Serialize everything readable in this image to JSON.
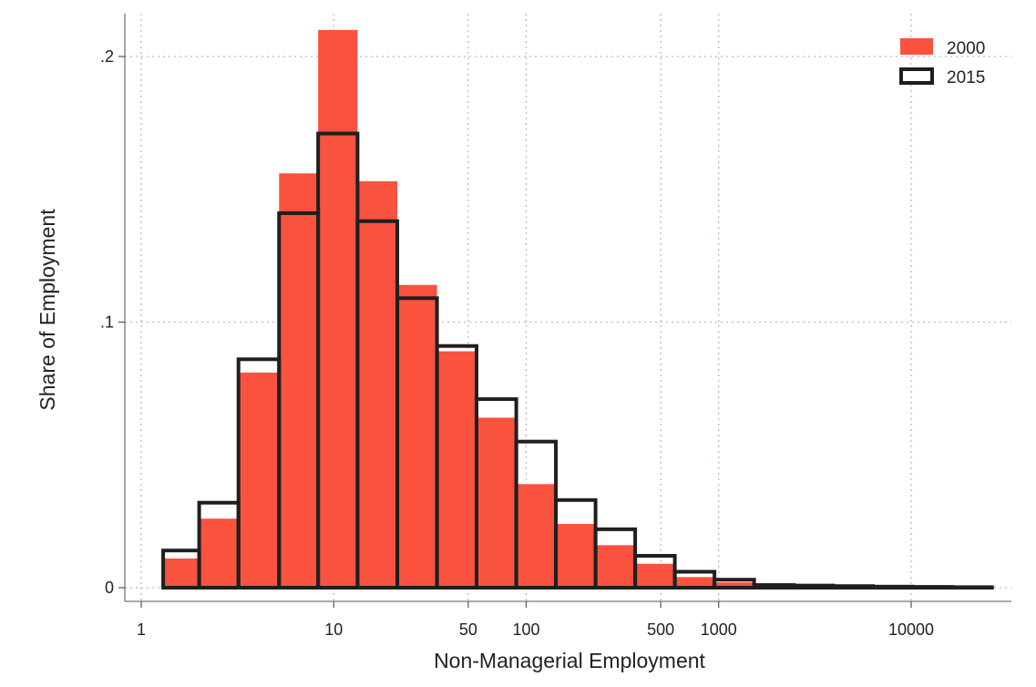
{
  "chart_data": {
    "type": "bar",
    "subtype": "histogram",
    "title": "",
    "xlabel": "Non-Managerial Employment",
    "ylabel": "Share of Employment",
    "x_scale": "log",
    "x_ticks": [
      "1",
      "10",
      "50",
      "100",
      "500",
      "1000",
      "10000"
    ],
    "y_ticks": [
      "0",
      ".1",
      ".2"
    ],
    "ylim": [
      0,
      0.2
    ],
    "grid": true,
    "legend_position": "top-right",
    "colors": {
      "2000": "#f9523f",
      "2015_outline": "#1f1f1f"
    },
    "bins": [
      [
        1.3,
        2.0
      ],
      [
        2.0,
        3.2
      ],
      [
        3.2,
        5.2
      ],
      [
        5.2,
        8.3
      ],
      [
        8.3,
        13.3
      ],
      [
        13.3,
        21.4
      ],
      [
        21.4,
        34.4
      ],
      [
        34.4,
        55.2
      ],
      [
        55.2,
        88.8
      ],
      [
        88.8,
        142.6
      ],
      [
        142.6,
        229.2
      ],
      [
        229.2,
        368.3
      ],
      [
        368.3,
        591.8
      ],
      [
        591.8,
        951.0
      ],
      [
        951.0,
        1528
      ],
      [
        1528,
        2455
      ],
      [
        2455,
        3945
      ],
      [
        3945,
        6339
      ],
      [
        6339,
        10186
      ],
      [
        10186,
        16368
      ],
      [
        16368,
        26300
      ]
    ],
    "series": [
      {
        "name": "2000",
        "style": "filled",
        "values": [
          0.011,
          0.026,
          0.081,
          0.156,
          0.21,
          0.153,
          0.114,
          0.089,
          0.064,
          0.039,
          0.024,
          0.016,
          0.009,
          0.004,
          0.002,
          0.001,
          0.0005,
          0.0003,
          0.0002,
          0.0001,
          0.0001
        ]
      },
      {
        "name": "2015",
        "style": "outline",
        "values": [
          0.014,
          0.032,
          0.086,
          0.141,
          0.171,
          0.138,
          0.109,
          0.091,
          0.071,
          0.055,
          0.033,
          0.022,
          0.012,
          0.006,
          0.003,
          0.001,
          0.0008,
          0.0006,
          0.0004,
          0.0003,
          0.0002
        ]
      }
    ]
  }
}
